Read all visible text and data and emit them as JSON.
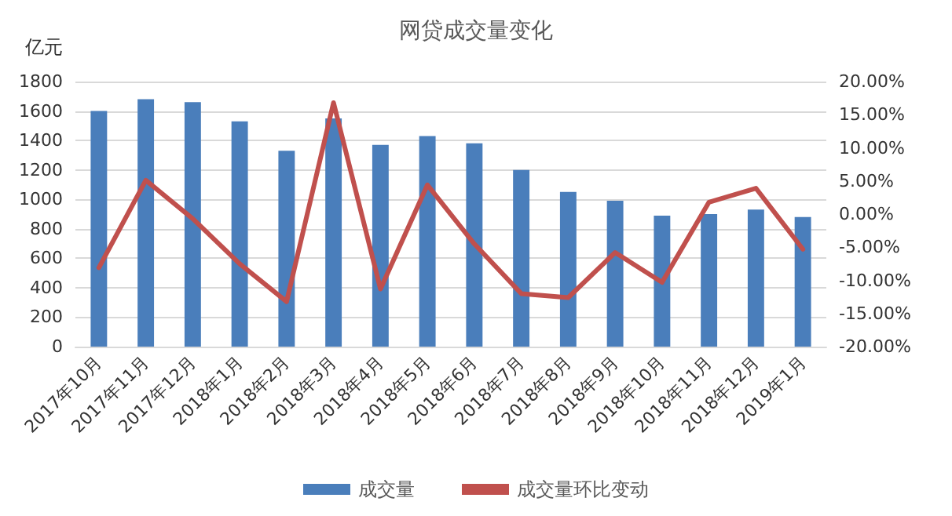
{
  "chart_data": {
    "type": "bar",
    "title": "网贷成交量变化",
    "ylabel": "亿元",
    "categories": [
      "2017年10月",
      "2017年11月",
      "2017年12月",
      "2018年1月",
      "2018年2月",
      "2018年3月",
      "2018年4月",
      "2018年5月",
      "2018年6月",
      "2018年7月",
      "2018年8月",
      "2018年9月",
      "2018年10月",
      "2018年11月",
      "2018年12月",
      "2019年1月"
    ],
    "series": [
      {
        "name": "成交量",
        "color": "#4a7ebb",
        "values": [
          1600,
          1680,
          1660,
          1530,
          1330,
          1550,
          1370,
          1430,
          1380,
          1200,
          1050,
          990,
          890,
          900,
          930,
          880
        ]
      },
      {
        "name": "成交量环比变动",
        "type": "line",
        "axis": "y2",
        "color": "#c0504d",
        "values": [
          -8.1,
          5.1,
          -0.7,
          -7.5,
          -13.2,
          16.8,
          -11.3,
          4.4,
          -4.5,
          -12,
          -12.6,
          -5.8,
          -10.3,
          1.8,
          3.9,
          -5.3
        ]
      }
    ],
    "ylim": [
      0,
      1800
    ],
    "yticks": [
      0,
      200,
      400,
      600,
      800,
      1000,
      1200,
      1400,
      1600,
      1800
    ],
    "y2lim": [
      -20,
      20
    ],
    "y2ticks": [
      {
        "value": -20,
        "label": "-20.00%"
      },
      {
        "value": -15,
        "label": "-15.00%"
      },
      {
        "value": -10,
        "label": "-10.00%"
      },
      {
        "value": -5,
        "label": "-5.00%"
      },
      {
        "value": 0,
        "label": "0.00%"
      },
      {
        "value": 5,
        "label": "5.00%"
      },
      {
        "value": 10,
        "label": "10.00%"
      },
      {
        "value": 15,
        "label": "15.00%"
      },
      {
        "value": 20,
        "label": "20.00%"
      }
    ],
    "grid": "y",
    "legend": "bottom",
    "marker": "none",
    "line_style": "solid"
  }
}
